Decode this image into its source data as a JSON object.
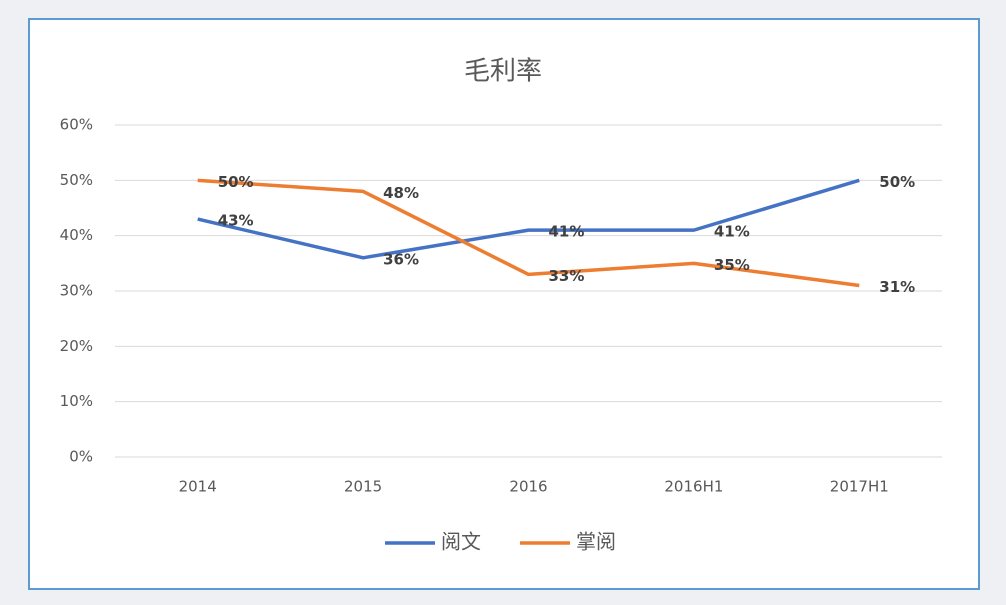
{
  "chart_data": {
    "type": "line",
    "title": "毛利率",
    "categories": [
      "2014",
      "2015",
      "2016",
      "2016H1",
      "2017H1"
    ],
    "series": [
      {
        "name": "阅文",
        "color": "#4472c4",
        "values": [
          43,
          36,
          41,
          41,
          50
        ],
        "value_labels": [
          "43%",
          "36%",
          "41%",
          "41%",
          "50%"
        ]
      },
      {
        "name": "掌阅",
        "color": "#ed7d31",
        "values": [
          50,
          48,
          33,
          35,
          31
        ],
        "value_labels": [
          "50%",
          "48%",
          "33%",
          "35%",
          "31%"
        ]
      }
    ],
    "ylim": [
      0,
      60
    ],
    "yticks": [
      {
        "value": 0,
        "label": "0%"
      },
      {
        "value": 10,
        "label": "10%"
      },
      {
        "value": 20,
        "label": "20%"
      },
      {
        "value": 30,
        "label": "30%"
      },
      {
        "value": 40,
        "label": "40%"
      },
      {
        "value": 50,
        "label": "50%"
      },
      {
        "value": 60,
        "label": "60%"
      }
    ],
    "grid": true,
    "legend": "bottom"
  }
}
